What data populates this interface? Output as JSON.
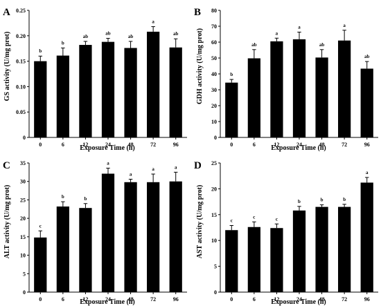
{
  "colors": {
    "bar": "#000000",
    "axis": "#000000",
    "background": "#ffffff"
  },
  "chart_data": [
    {
      "panel": "A",
      "type": "bar",
      "xlabel": "Exposure Time (h)",
      "ylabel": "GS activity (U/mg prot)",
      "categories": [
        "0",
        "6",
        "12",
        "24",
        "48",
        "72",
        "96"
      ],
      "values": [
        0.15,
        0.161,
        0.182,
        0.188,
        0.176,
        0.208,
        0.177
      ],
      "errors": [
        0.01,
        0.015,
        0.007,
        0.007,
        0.013,
        0.01,
        0.017
      ],
      "significance": [
        "b",
        "b",
        "ab",
        "ab",
        "ab",
        "a",
        "ab"
      ],
      "ylim": [
        0,
        0.25
      ],
      "yticks": [
        "0",
        "0.05",
        "0.10",
        "0.15",
        "0.20",
        "0.25"
      ],
      "ytick_values": [
        0,
        0.05,
        0.1,
        0.15,
        0.2,
        0.25
      ]
    },
    {
      "panel": "B",
      "type": "bar",
      "xlabel": "Exposure Time (h)",
      "ylabel": "GDH activity (U/mg prot)",
      "categories": [
        "0",
        "6",
        "12",
        "24",
        "48",
        "72",
        "96"
      ],
      "values": [
        34.5,
        49.8,
        60.5,
        61.8,
        50.3,
        61.0,
        43.3
      ],
      "errors": [
        2.0,
        5.5,
        2.0,
        4.5,
        5.0,
        6.5,
        4.5
      ],
      "significance": [
        "b",
        "ab",
        "a",
        "a",
        "ab",
        "a",
        "ab"
      ],
      "ylim": [
        0,
        80
      ],
      "yticks": [
        "0",
        "10",
        "20",
        "30",
        "40",
        "50",
        "60",
        "70",
        "80"
      ],
      "ytick_values": [
        0,
        10,
        20,
        30,
        40,
        50,
        60,
        70,
        80
      ]
    },
    {
      "panel": "C",
      "type": "bar",
      "xlabel": "Exposure Time (h)",
      "ylabel": "ALT activity (U/mg prot)",
      "categories": [
        "0",
        "6",
        "12",
        "24",
        "48",
        "72",
        "96"
      ],
      "values": [
        14.8,
        23.2,
        22.8,
        32.1,
        29.8,
        29.8,
        30.0
      ],
      "errors": [
        1.8,
        1.3,
        1.2,
        1.5,
        0.8,
        2.2,
        2.5
      ],
      "significance": [
        "c",
        "b",
        "b",
        "a",
        "a",
        "a",
        "a"
      ],
      "ylim": [
        0,
        35
      ],
      "yticks": [
        "0",
        "5",
        "10",
        "15",
        "20",
        "25",
        "30",
        "35"
      ],
      "ytick_values": [
        0,
        5,
        10,
        15,
        20,
        25,
        30,
        35
      ]
    },
    {
      "panel": "D",
      "type": "bar",
      "xlabel": "Exposure Time (h)",
      "ylabel": "AST activity (U/mg prot)",
      "categories": [
        "0",
        "6",
        "12",
        "24",
        "48",
        "72",
        "96"
      ],
      "values": [
        12.0,
        12.6,
        12.4,
        15.8,
        16.5,
        16.5,
        21.2
      ],
      "errors": [
        0.9,
        1.0,
        0.8,
        0.8,
        0.4,
        0.5,
        1.0
      ],
      "significance": [
        "c",
        "c",
        "c",
        "b",
        "b",
        "b",
        "a"
      ],
      "ylim": [
        0,
        25
      ],
      "yticks": [
        "0",
        "5",
        "10",
        "15",
        "20",
        "25"
      ],
      "ytick_values": [
        0,
        5,
        10,
        15,
        20,
        25
      ]
    }
  ]
}
